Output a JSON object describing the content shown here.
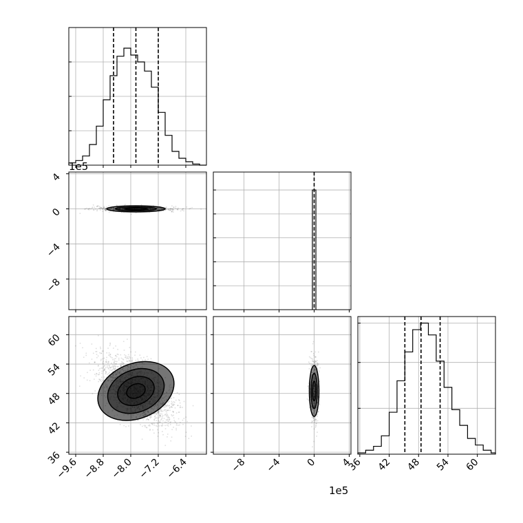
{
  "chart_data": [
    {
      "type": "histogram",
      "panel": "param0-marginal",
      "x": [
        -9.8,
        -9.6,
        -9.4,
        -9.2,
        -9.0,
        -8.8,
        -8.6,
        -8.4,
        -8.2,
        -8.0,
        -7.8,
        -7.6,
        -7.4,
        -7.2,
        -7.0,
        -6.8,
        -6.6,
        -6.4,
        -6.2,
        -6.0
      ],
      "values": [
        2,
        4,
        8,
        18,
        34,
        57,
        78,
        95,
        102,
        96,
        90,
        82,
        68,
        46,
        26,
        12,
        6,
        3,
        1,
        0
      ],
      "quantiles": [
        -8.5,
        -7.85,
        -7.2
      ],
      "xlim": [
        -9.8,
        -5.8
      ],
      "ylim": [
        0,
        120
      ],
      "grid": true
    },
    {
      "type": "scatter",
      "panel": "param0-vs-param1",
      "xlim": [
        -9.8,
        -5.8
      ],
      "ylim": [
        -11.5,
        4.2
      ],
      "yticks": [
        "4",
        "0",
        "−4",
        "−8"
      ],
      "ytick_values": [
        4,
        0,
        -4,
        -8
      ],
      "offset_label": "1e5",
      "center": [
        -7.85,
        0
      ],
      "contours": [
        {
          "rx": 0.85,
          "ry": 0.35
        },
        {
          "rx": 0.6,
          "ry": 0.22
        },
        {
          "rx": 0.35,
          "ry": 0.1
        }
      ],
      "grid": true
    },
    {
      "type": "histogram",
      "panel": "param1-marginal",
      "x": [
        -0.2,
        0.2
      ],
      "values": [
        1
      ],
      "quantiles": [
        0
      ],
      "xlim": [
        -11.5,
        4.2
      ],
      "ylim": [
        0,
        1.15
      ],
      "grid": true
    },
    {
      "type": "scatter",
      "panel": "param0-vs-param2",
      "xlim": [
        -9.8,
        -5.8
      ],
      "ylim": [
        35.6,
        63.7
      ],
      "xticks": [
        "−9.6",
        "−8.8",
        "−8.0",
        "−7.2",
        "−6.4"
      ],
      "xtick_values": [
        -9.6,
        -8.8,
        -8.0,
        -7.2,
        -6.4
      ],
      "yticks": [
        "60",
        "54",
        "48",
        "42",
        "36"
      ],
      "ytick_values": [
        60,
        54,
        48,
        42,
        36
      ],
      "center": [
        -7.85,
        48.5
      ],
      "correlation": -0.6,
      "contours": [
        {
          "rx": 1.15,
          "ry": 5.6
        },
        {
          "rx": 0.85,
          "ry": 4.3
        },
        {
          "rx": 0.55,
          "ry": 2.8
        },
        {
          "rx": 0.28,
          "ry": 1.4
        }
      ],
      "grid": true
    },
    {
      "type": "scatter",
      "panel": "param1-vs-param2",
      "xlim": [
        -11.5,
        4.2
      ],
      "ylim": [
        35.6,
        63.7
      ],
      "xticks": [
        "−8",
        "−4",
        "0",
        "4"
      ],
      "xtick_values": [
        -8,
        -4,
        0,
        4
      ],
      "offset_label": "1e5",
      "center": [
        0,
        48.5
      ],
      "contours": [
        {
          "rx": 0.55,
          "ry": 5.2
        },
        {
          "rx": 0.35,
          "ry": 3.6
        },
        {
          "rx": 0.18,
          "ry": 2.0
        }
      ],
      "grid": true
    },
    {
      "type": "histogram",
      "panel": "param2-marginal",
      "x": [
        35.6,
        37.2,
        38.8,
        40.4,
        42.0,
        43.6,
        45.2,
        46.8,
        48.4,
        50.0,
        51.6,
        53.2,
        54.8,
        56.4,
        58.0,
        59.6,
        61.2,
        62.8,
        63.7
      ],
      "values": [
        1,
        3,
        6,
        14,
        32,
        56,
        78,
        95,
        100,
        91,
        71,
        51,
        34,
        22,
        12,
        7,
        3,
        1
      ],
      "quantiles": [
        45.2,
        48.5,
        52.4
      ],
      "xticks": [
        "36",
        "42",
        "48",
        "54",
        "60"
      ],
      "xtick_values": [
        36,
        42,
        48,
        54,
        60
      ],
      "xlim": [
        35.6,
        63.7
      ],
      "ylim": [
        0,
        105
      ],
      "grid": true
    }
  ]
}
